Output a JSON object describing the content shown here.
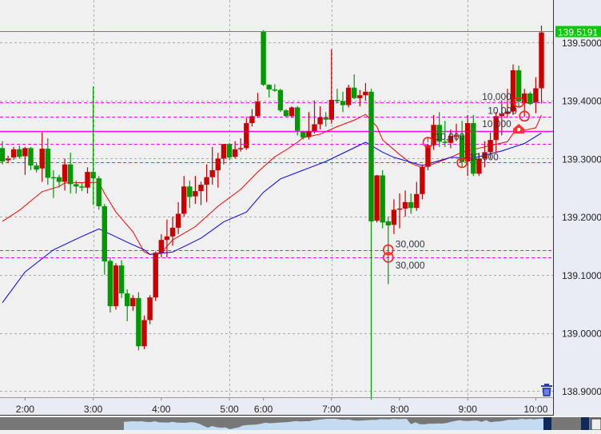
{
  "chart_data": {
    "type": "candlestick",
    "up_color": "#cc0000",
    "down_color": "#009900",
    "ylim": [
      138.88,
      139.575
    ],
    "y_ticks": [
      "139.5000",
      "139.4000",
      "139.3000",
      "139.2000",
      "139.1000",
      "139.0000",
      "138.9000"
    ],
    "x_ticks": [
      "2:00",
      "3:00",
      "4:00",
      "5:00",
      "6:00",
      "7:00",
      "8:00",
      "9:00",
      "10:00"
    ],
    "grid": true,
    "current_price": {
      "label": "139.5191",
      "value": 139.5191,
      "color": "#00cc00"
    },
    "candles_fields": [
      "time",
      "open",
      "high",
      "low",
      "close"
    ],
    "candles": [
      [
        "1:40",
        139.318,
        139.33,
        139.29,
        139.295
      ],
      [
        "1:45",
        139.297,
        139.305,
        139.292,
        139.3
      ],
      [
        "1:50",
        139.302,
        139.32,
        139.298,
        139.316
      ],
      [
        "1:55",
        139.316,
        139.322,
        139.3,
        139.303
      ],
      [
        "2:00",
        139.304,
        139.32,
        139.272,
        139.318
      ],
      [
        "2:05",
        139.318,
        139.32,
        139.28,
        139.288
      ],
      [
        "2:10",
        139.288,
        139.292,
        139.276,
        139.281
      ],
      [
        "2:15",
        139.283,
        139.345,
        139.26,
        139.317
      ],
      [
        "2:20",
        139.317,
        139.335,
        139.255,
        139.267
      ],
      [
        "2:25",
        139.268,
        139.28,
        139.232,
        139.266
      ],
      [
        "2:30",
        139.268,
        139.272,
        139.25,
        139.26
      ],
      [
        "2:35",
        139.26,
        139.3,
        139.245,
        139.29
      ],
      [
        "2:40",
        139.29,
        139.31,
        139.24,
        139.256
      ],
      [
        "2:45",
        139.256,
        139.262,
        139.24,
        139.252
      ],
      [
        "2:50",
        139.252,
        139.258,
        139.244,
        139.25
      ],
      [
        "2:55",
        139.25,
        139.285,
        139.24,
        139.277
      ],
      [
        "3:00",
        139.277,
        139.424,
        139.22,
        139.266
      ],
      [
        "3:05",
        139.266,
        139.27,
        139.212,
        139.218
      ],
      [
        "3:10",
        139.218,
        139.222,
        139.1,
        139.123
      ],
      [
        "3:15",
        139.124,
        139.13,
        139.035,
        139.046
      ],
      [
        "3:20",
        139.046,
        139.12,
        139.04,
        139.116
      ],
      [
        "3:25",
        139.116,
        139.125,
        139.06,
        139.068
      ],
      [
        "3:30",
        139.068,
        139.075,
        139.02,
        139.046
      ],
      [
        "3:35",
        139.046,
        139.065,
        139.038,
        139.06
      ],
      [
        "3:40",
        139.06,
        139.07,
        138.97,
        138.977
      ],
      [
        "3:45",
        138.977,
        139.03,
        138.972,
        139.022
      ],
      [
        "3:50",
        139.022,
        139.065,
        139.015,
        139.061
      ],
      [
        "3:55",
        139.061,
        139.14,
        139.055,
        139.138
      ],
      [
        "4:00",
        139.138,
        139.17,
        139.13,
        139.16
      ],
      [
        "4:05",
        139.16,
        139.195,
        139.13,
        139.166
      ],
      [
        "4:10",
        139.166,
        139.2,
        139.15,
        139.181
      ],
      [
        "4:15",
        139.181,
        139.225,
        139.17,
        139.205
      ],
      [
        "4:20",
        139.205,
        139.27,
        139.2,
        139.252
      ],
      [
        "4:25",
        139.252,
        139.262,
        139.215,
        139.234
      ],
      [
        "4:30",
        139.235,
        139.27,
        139.222,
        139.244
      ],
      [
        "4:35",
        139.244,
        139.26,
        139.22,
        139.255
      ],
      [
        "4:40",
        139.255,
        139.29,
        139.225,
        139.268
      ],
      [
        "4:45",
        139.268,
        139.32,
        139.255,
        139.28
      ],
      [
        "4:50",
        139.28,
        139.31,
        139.25,
        139.3
      ],
      [
        "4:55",
        139.3,
        139.325,
        139.29,
        139.325
      ],
      [
        "5:00",
        139.325,
        139.327,
        139.298,
        139.302
      ],
      [
        "5:10",
        139.303,
        139.33,
        139.3,
        139.316
      ],
      [
        "5:20",
        139.316,
        139.335,
        139.312,
        139.318
      ],
      [
        "5:30",
        139.318,
        139.37,
        139.315,
        139.361
      ],
      [
        "5:40",
        139.361,
        139.385,
        139.355,
        139.373
      ],
      [
        "5:50",
        139.373,
        139.413,
        139.37,
        139.398
      ],
      [
        "6:00",
        139.519,
        139.521,
        139.425,
        139.427
      ],
      [
        "6:05",
        139.427,
        139.428,
        139.405,
        139.419
      ],
      [
        "6:10",
        139.419,
        139.428,
        139.415,
        139.418
      ],
      [
        "6:15",
        139.418,
        139.42,
        139.38,
        139.383
      ],
      [
        "6:20",
        139.383,
        139.385,
        139.372,
        139.373
      ],
      [
        "6:25",
        139.373,
        139.39,
        139.37,
        139.388
      ],
      [
        "6:30",
        139.388,
        139.39,
        139.34,
        139.348
      ],
      [
        "6:35",
        139.346,
        139.348,
        139.333,
        139.336
      ],
      [
        "6:40",
        139.337,
        139.38,
        139.333,
        139.347
      ],
      [
        "6:45",
        139.347,
        139.4,
        139.343,
        139.359
      ],
      [
        "6:50",
        139.359,
        139.39,
        139.35,
        139.371
      ],
      [
        "6:55",
        139.371,
        139.38,
        139.355,
        139.367
      ],
      [
        "7:00",
        139.367,
        139.488,
        139.36,
        139.401
      ],
      [
        "7:05",
        139.401,
        139.42,
        139.395,
        139.399
      ],
      [
        "7:10",
        139.399,
        139.415,
        139.38,
        139.392
      ],
      [
        "7:15",
        139.392,
        139.427,
        139.388,
        139.422
      ],
      [
        "7:20",
        139.422,
        139.445,
        139.402,
        139.404
      ],
      [
        "7:25",
        139.404,
        139.418,
        139.39,
        139.409
      ],
      [
        "7:30",
        139.409,
        139.43,
        139.4,
        139.415
      ],
      [
        "7:35",
        139.415,
        139.42,
        138.885,
        139.192
      ],
      [
        "7:40",
        139.193,
        139.272,
        139.19,
        139.271
      ],
      [
        "7:45",
        139.271,
        139.28,
        139.18,
        139.19
      ],
      [
        "7:50",
        139.192,
        139.2,
        139.084,
        139.185
      ],
      [
        "7:55",
        139.186,
        139.23,
        139.17,
        139.212
      ],
      [
        "8:00",
        139.213,
        139.24,
        139.18,
        139.214
      ],
      [
        "8:05",
        139.214,
        139.245,
        139.2,
        139.225
      ],
      [
        "8:10",
        139.225,
        139.24,
        139.205,
        139.215
      ],
      [
        "8:15",
        139.215,
        139.26,
        139.21,
        139.239
      ],
      [
        "8:20",
        139.239,
        139.29,
        139.23,
        139.286
      ],
      [
        "8:25",
        139.286,
        139.325,
        139.28,
        139.323
      ],
      [
        "8:30",
        139.323,
        139.375,
        139.315,
        139.358
      ],
      [
        "8:35",
        139.358,
        139.38,
        139.32,
        139.329
      ],
      [
        "8:40",
        139.329,
        139.365,
        139.32,
        139.327
      ],
      [
        "8:45",
        139.327,
        139.35,
        139.318,
        139.339
      ],
      [
        "8:50",
        139.339,
        139.36,
        139.33,
        139.34
      ],
      [
        "8:55",
        139.34,
        139.365,
        139.285,
        139.294
      ],
      [
        "9:00",
        139.295,
        139.375,
        139.27,
        139.361
      ],
      [
        "9:05",
        139.361,
        139.375,
        139.27,
        139.274
      ],
      [
        "9:10",
        139.274,
        139.31,
        139.27,
        139.3
      ],
      [
        "9:15",
        139.3,
        139.33,
        139.285,
        139.311
      ],
      [
        "9:20",
        139.311,
        139.345,
        139.3,
        139.332
      ],
      [
        "9:25",
        139.332,
        139.38,
        139.31,
        139.373
      ],
      [
        "9:30",
        139.373,
        139.4,
        139.34,
        139.377
      ],
      [
        "9:35",
        139.377,
        139.42,
        139.37,
        139.381
      ],
      [
        "9:40",
        139.381,
        139.462,
        139.375,
        139.452
      ],
      [
        "9:45",
        139.452,
        139.46,
        139.39,
        139.398
      ],
      [
        "9:50",
        139.395,
        139.42,
        139.372,
        139.412
      ],
      [
        "9:55",
        139.412,
        139.415,
        139.392,
        139.394
      ],
      [
        "10:00",
        139.397,
        139.44,
        139.378,
        139.421
      ],
      [
        "10:05",
        139.421,
        139.529,
        139.395,
        139.517
      ]
    ],
    "moving_averages": [
      {
        "color": "#ff0000",
        "points": [
          [
            "1:40",
            139.192
          ],
          [
            "1:55",
            139.211
          ],
          [
            "2:15",
            139.243
          ],
          [
            "2:30",
            139.252
          ],
          [
            "2:35",
            139.258
          ],
          [
            "2:55",
            139.259
          ],
          [
            "3:05",
            139.259
          ],
          [
            "3:10",
            139.24
          ],
          [
            "3:20",
            139.208
          ],
          [
            "3:35",
            139.174
          ],
          [
            "3:45",
            139.139
          ],
          [
            "3:50",
            139.135
          ],
          [
            "4:00",
            139.138
          ],
          [
            "4:10",
            139.16
          ],
          [
            "4:30",
            139.183
          ],
          [
            "4:50",
            139.218
          ],
          [
            "5:20",
            139.247
          ],
          [
            "5:50",
            139.277
          ],
          [
            "6:10",
            139.303
          ],
          [
            "6:20",
            139.315
          ],
          [
            "6:30",
            139.328
          ],
          [
            "6:35",
            139.336
          ],
          [
            "6:50",
            139.342
          ],
          [
            "7:05",
            139.355
          ],
          [
            "7:20",
            139.366
          ],
          [
            "7:30",
            139.376
          ],
          [
            "7:40",
            139.355
          ],
          [
            "7:45",
            139.332
          ],
          [
            "8:00",
            139.307
          ],
          [
            "8:10",
            139.292
          ],
          [
            "8:20",
            139.284
          ],
          [
            "8:30",
            139.291
          ],
          [
            "8:45",
            139.302
          ],
          [
            "8:55",
            139.311
          ],
          [
            "9:10",
            139.318
          ],
          [
            "9:35",
            139.329
          ],
          [
            "9:40",
            139.343
          ],
          [
            "9:50",
            139.349
          ],
          [
            "10:00",
            139.353
          ],
          [
            "10:05",
            139.375
          ]
        ]
      },
      {
        "color": "#0000ff",
        "points": [
          [
            "1:40",
            139.052
          ],
          [
            "2:00",
            139.105
          ],
          [
            "2:25",
            139.143
          ],
          [
            "2:50",
            139.166
          ],
          [
            "3:05",
            139.179
          ],
          [
            "3:15",
            139.17
          ],
          [
            "3:30",
            139.156
          ],
          [
            "3:45",
            139.143
          ],
          [
            "3:50",
            139.135
          ],
          [
            "4:10",
            139.139
          ],
          [
            "4:35",
            139.163
          ],
          [
            "4:55",
            139.191
          ],
          [
            "5:30",
            139.208
          ],
          [
            "6:00",
            139.242
          ],
          [
            "6:15",
            139.265
          ],
          [
            "6:35",
            139.28
          ],
          [
            "6:55",
            139.295
          ],
          [
            "7:30",
            139.328
          ],
          [
            "7:45",
            139.311
          ],
          [
            "7:55",
            139.302
          ],
          [
            "8:20",
            139.288
          ],
          [
            "8:45",
            139.302
          ],
          [
            "9:05",
            139.301
          ],
          [
            "9:30",
            139.313
          ],
          [
            "9:50",
            139.326
          ],
          [
            "10:05",
            139.344
          ]
        ]
      }
    ],
    "horizontal_lines": [
      {
        "value": 139.397,
        "style": "dashed",
        "color": "#ff00ff"
      },
      {
        "value": 139.372,
        "style": "dashed",
        "color": "#ff00ff"
      },
      {
        "value": 139.347,
        "style": "solid",
        "color": "#ff00ff"
      },
      {
        "value": 139.325,
        "style": "dashed",
        "color": "#ff00ff"
      },
      {
        "value": 139.293,
        "style": "dashed",
        "color": "#ff00ff"
      },
      {
        "value": 139.143,
        "style": "dashed",
        "color": "#ff00ff"
      },
      {
        "value": 139.13,
        "style": "dashed",
        "color": "#ff00ff"
      }
    ],
    "trade_markers": [
      {
        "time": "7:50",
        "price": 139.143,
        "label": "30,000",
        "shape": "circle",
        "label_side": "right"
      },
      {
        "time": "7:50",
        "price": 139.13,
        "label": "30,000",
        "shape": "circle",
        "label_side": "right"
      },
      {
        "time": "8:25",
        "price": 139.328,
        "label": "10,000",
        "shape": "circle",
        "label_side": "right"
      },
      {
        "time": "8:55",
        "price": 139.293,
        "label": "10,000",
        "shape": "circle",
        "label_side": "right"
      },
      {
        "time": "9:45",
        "price": 139.397,
        "label": "10,000",
        "shape": "circle",
        "label_side": "left"
      },
      {
        "time": "9:50",
        "price": 139.373,
        "label": "10,000",
        "shape": "circle",
        "label_side": "left"
      },
      {
        "time": "9:45",
        "price": 139.35,
        "label": "10,000",
        "shape": "house",
        "label_side": "left"
      }
    ]
  },
  "toolbar": {
    "trash_icon": "trash-icon"
  }
}
